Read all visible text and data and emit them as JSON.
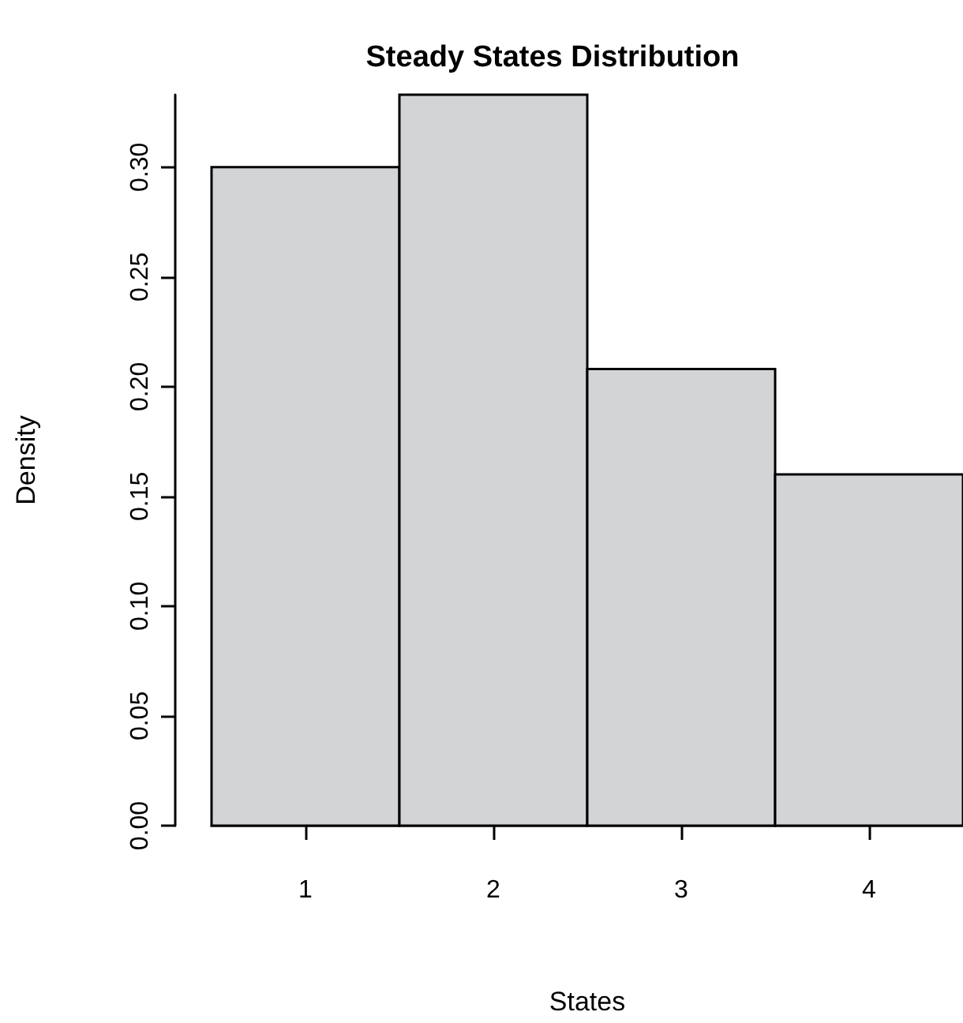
{
  "chart_data": {
    "type": "histogram",
    "title": "Steady States Distribution",
    "xlabel": "States",
    "ylabel": "Density",
    "bins": [
      0.5,
      1.5,
      2.5,
      3.5,
      4.5
    ],
    "values": [
      0.3,
      0.333,
      0.208,
      0.16
    ],
    "color": "#d3d4d6",
    "xlim": [
      0.5,
      4.5
    ],
    "xticks": [
      1,
      2,
      3,
      4
    ],
    "ylim": [
      0,
      0.333
    ],
    "yticks": [
      {
        "value": 0,
        "label": "0.00"
      },
      {
        "value": 0.05,
        "label": "0.05"
      },
      {
        "value": 0.1,
        "label": "0.10"
      },
      {
        "value": 0.15,
        "label": "0.15"
      },
      {
        "value": 0.2,
        "label": "0.20"
      },
      {
        "value": 0.25,
        "label": "0.25"
      },
      {
        "value": 0.3,
        "label": "0.30"
      }
    ],
    "grid": false
  }
}
